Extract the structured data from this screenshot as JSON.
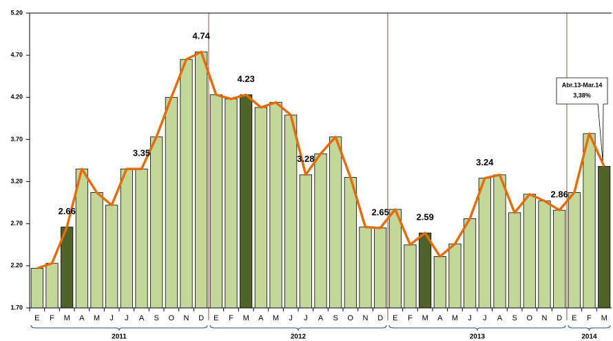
{
  "chart_data": {
    "type": "bar-line",
    "ylim": [
      1.7,
      5.2
    ],
    "yticks": [
      {
        "value": 1.7,
        "label": "1.70"
      },
      {
        "value": 2.2,
        "label": "2.20"
      },
      {
        "value": 2.7,
        "label": "2.70"
      },
      {
        "value": 3.2,
        "label": "3.20"
      },
      {
        "value": 3.7,
        "label": "3.70"
      },
      {
        "value": 4.2,
        "label": "4.20"
      },
      {
        "value": 4.7,
        "label": "4.70"
      },
      {
        "value": 5.2,
        "label": "5.20"
      }
    ],
    "bar_color": "#c4d79b",
    "highlight_color": "#4f6228",
    "line_color": "#e46c0a",
    "separator_color": "#a0522d",
    "year_color": "#c00000",
    "groups": [
      {
        "label": "2011",
        "categories": [
          "E",
          "F",
          "M",
          "A",
          "M",
          "J",
          "J",
          "A",
          "S",
          "O",
          "N",
          "D"
        ],
        "values": [
          2.17,
          2.23,
          2.66,
          3.35,
          3.07,
          2.92,
          3.35,
          3.35,
          3.73,
          4.2,
          4.65,
          4.74
        ],
        "highlight": [
          false,
          false,
          true,
          false,
          false,
          false,
          false,
          false,
          false,
          false,
          false,
          false
        ],
        "value_labels": [
          null,
          null,
          "2.66",
          null,
          null,
          null,
          null,
          "3.35",
          null,
          null,
          null,
          "4.74"
        ]
      },
      {
        "label": "2012",
        "categories": [
          "E",
          "F",
          "M",
          "A",
          "M",
          "J",
          "J",
          "A",
          "S",
          "O",
          "N",
          "D"
        ],
        "values": [
          4.23,
          4.18,
          4.23,
          4.08,
          4.14,
          3.99,
          3.28,
          3.53,
          3.73,
          3.25,
          2.66,
          2.65
        ],
        "highlight": [
          false,
          false,
          true,
          false,
          false,
          false,
          false,
          false,
          false,
          false,
          false,
          false
        ],
        "value_labels": [
          null,
          null,
          "4.23",
          null,
          null,
          null,
          "3.28",
          null,
          null,
          null,
          null,
          "2.65"
        ]
      },
      {
        "label": "2013",
        "categories": [
          "E",
          "F",
          "M",
          "A",
          "M",
          "J",
          "J",
          "A",
          "S",
          "O",
          "N",
          "D"
        ],
        "values": [
          2.87,
          2.45,
          2.59,
          2.31,
          2.46,
          2.76,
          3.24,
          3.28,
          2.83,
          3.05,
          2.97,
          2.86
        ],
        "highlight": [
          false,
          false,
          true,
          false,
          false,
          false,
          false,
          false,
          false,
          false,
          false,
          false
        ],
        "value_labels": [
          null,
          null,
          "2.59",
          null,
          null,
          null,
          "3.24",
          null,
          null,
          null,
          null,
          "2.86"
        ]
      },
      {
        "label": "2014",
        "categories": [
          "E",
          "F",
          "M"
        ],
        "values": [
          3.07,
          3.77,
          3.38
        ],
        "highlight": [
          false,
          false,
          true
        ],
        "value_labels": [
          null,
          null,
          null
        ]
      }
    ],
    "annotation": {
      "lines": [
        "Abr.13-Mar.14",
        "3,38%"
      ]
    }
  }
}
